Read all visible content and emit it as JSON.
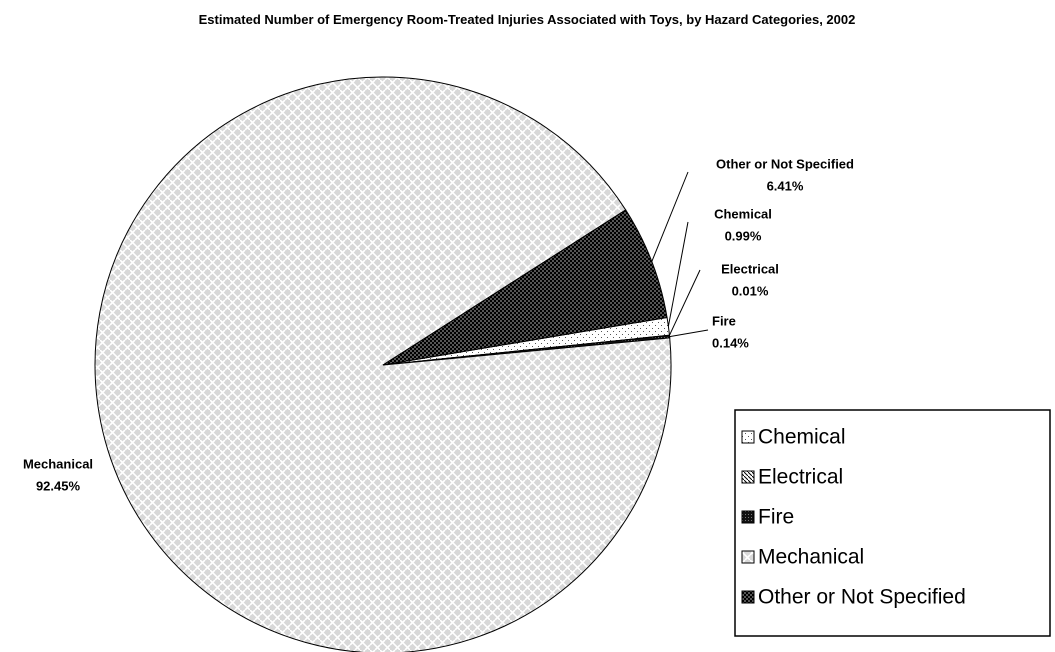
{
  "chart_data": {
    "type": "pie",
    "title": "Estimated Number of Emergency Room-Treated Injuries Associated with Toys, by Hazard Categories, 2002",
    "categories": [
      "Chemical",
      "Electrical",
      "Fire",
      "Mechanical",
      "Other or Not Specified"
    ],
    "values": [
      0.99,
      0.01,
      0.14,
      92.45,
      6.41
    ],
    "value_labels": [
      "0.99%",
      "0.01%",
      "0.14%",
      "92.45%",
      "6.41%"
    ],
    "legend": "lower right"
  }
}
